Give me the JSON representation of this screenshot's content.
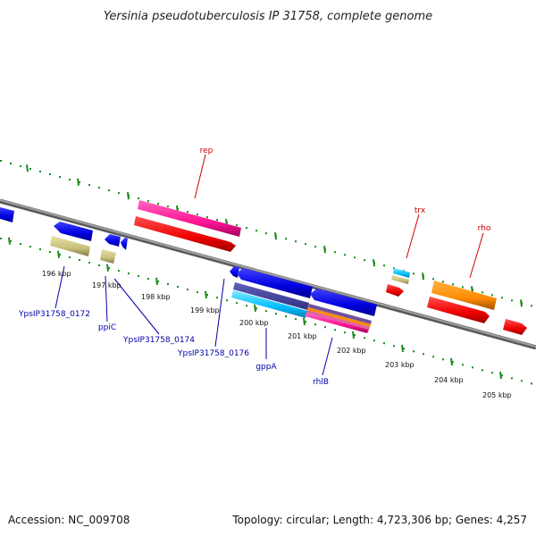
{
  "title": "Yersinia pseudotuberculosis IP 31758, complete genome",
  "footer": {
    "accession": "Accession: NC_009708",
    "summary": "Topology: circular; Length: 4,723,306 bp; Genes: 4,257"
  },
  "kbp_labels": [
    "196 kbp",
    "197 kbp",
    "198 kbp",
    "199 kbp",
    "200 kbp",
    "201 kbp",
    "202 kbp",
    "203 kbp",
    "204 kbp",
    "205 kbp"
  ],
  "gene_labels": {
    "rep": "rep",
    "trx": "trx",
    "rho": "rho",
    "ypsip31758_0172": "YpsIP31758_0172",
    "ppic": "ppiC",
    "ypsip31758_0174": "YpsIP31758_0174",
    "ypsip31758_0176": "YpsIP31758_0176",
    "gppa": "gppA",
    "rhlb": "rhlB"
  },
  "colors": {
    "backbone": "#808080",
    "tick": "#1a8a1a",
    "forward_cds": "#ff0000",
    "reverse_cds": "#0000ee",
    "repeat_region": "#ff1493",
    "orange_feature": "#ff8c00",
    "cyan_feature": "#00bfff",
    "khaki_feature": "#c8c07a",
    "label_red": "#cc0000",
    "label_blue": "#0000aa"
  }
}
